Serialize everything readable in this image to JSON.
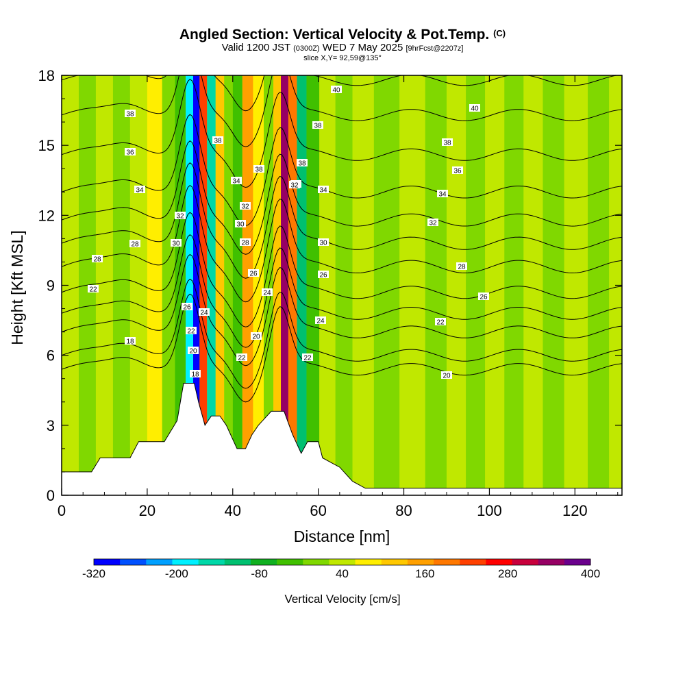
{
  "title": {
    "main": "Angled Section: Vertical Velocity & Pot.Temp.",
    "mark": "(C)",
    "valid_prefix": "Valid 1200 JST",
    "valid_z": "(0300Z)",
    "valid_date": "WED 7 May 2025",
    "forecast": "[9hrFcst@2207z]",
    "slice": "slice X,Y= 92,59@135°"
  },
  "chart_data": {
    "type": "heatmap",
    "xlabel": "Distance [nm]",
    "ylabel": "Height [Kft MSL]",
    "xlim": [
      0,
      131
    ],
    "ylim": [
      0,
      18
    ],
    "x_ticks": [
      0,
      20,
      40,
      60,
      80,
      100,
      120
    ],
    "y_ticks": [
      0,
      3,
      6,
      9,
      12,
      15,
      18
    ],
    "colorbar": {
      "title": "Vertical Velocity [cm/s]",
      "min": -320,
      "max": 400,
      "step": 40,
      "tick_values": [
        -320,
        -200,
        -80,
        40,
        160,
        280,
        400
      ],
      "tick_labels": [
        "-320",
        "-200",
        "-80",
        "40",
        "160",
        "280",
        "400"
      ],
      "colors": [
        "#0000ff",
        "#0050ff",
        "#00a0ff",
        "#00f0ff",
        "#00d8a8",
        "#00c070",
        "#10b020",
        "#40c000",
        "#80d800",
        "#c0e800",
        "#ffee00",
        "#ffc800",
        "#ffa000",
        "#ff7800",
        "#ff4000",
        "#ff0000",
        "#c8003c",
        "#960064",
        "#6a008c"
      ]
    },
    "background_velocity": 40,
    "columns": [
      {
        "x": 2,
        "v": 40
      },
      {
        "x": 6,
        "v": 0
      },
      {
        "x": 10,
        "v": 40
      },
      {
        "x": 14,
        "v": 0
      },
      {
        "x": 18,
        "v": 40
      },
      {
        "x": 22,
        "v": 80
      },
      {
        "x": 25,
        "v": 0
      },
      {
        "x": 28,
        "v": -40
      },
      {
        "x": 30,
        "v": -200
      },
      {
        "x": 31.5,
        "v": -320
      },
      {
        "x": 33,
        "v": 240
      },
      {
        "x": 35,
        "v": -160
      },
      {
        "x": 37,
        "v": 120
      },
      {
        "x": 39,
        "v": 0
      },
      {
        "x": 41,
        "v": -40
      },
      {
        "x": 43.5,
        "v": 160
      },
      {
        "x": 46,
        "v": 80
      },
      {
        "x": 48.5,
        "v": 0
      },
      {
        "x": 50.5,
        "v": 120
      },
      {
        "x": 52,
        "v": 360
      },
      {
        "x": 54,
        "v": 200
      },
      {
        "x": 56,
        "v": -120
      },
      {
        "x": 58.5,
        "v": -40
      },
      {
        "x": 62,
        "v": 40
      },
      {
        "x": 66,
        "v": 0
      },
      {
        "x": 70,
        "v": 40
      },
      {
        "x": 76,
        "v": 0
      },
      {
        "x": 82,
        "v": 40
      },
      {
        "x": 88,
        "v": 0
      },
      {
        "x": 92,
        "v": 40
      },
      {
        "x": 97,
        "v": 0
      },
      {
        "x": 101,
        "v": 40
      },
      {
        "x": 106,
        "v": 0
      },
      {
        "x": 110,
        "v": 40
      },
      {
        "x": 115,
        "v": 0
      },
      {
        "x": 120,
        "v": 40
      },
      {
        "x": 126,
        "v": 0
      },
      {
        "x": 130,
        "v": 40
      }
    ],
    "potential_temperature_contours": [
      {
        "value": 18,
        "y0": 5.4
      },
      {
        "value": 20,
        "y0": 6.0
      },
      {
        "value": 22,
        "y0": 7.0
      },
      {
        "value": 24,
        "y0": 7.8
      },
      {
        "value": 26,
        "y0": 8.7
      },
      {
        "value": 28,
        "y0": 9.8
      },
      {
        "value": 30,
        "y0": 10.8
      },
      {
        "value": 32,
        "y0": 11.8
      },
      {
        "value": 34,
        "y0": 13.0
      },
      {
        "value": 36,
        "y0": 14.6
      },
      {
        "value": 38,
        "y0": 16.3
      },
      {
        "value": 40,
        "y0": 17.8
      }
    ],
    "contour_label_texts": [
      "40",
      "40",
      "38",
      "38",
      "38",
      "38",
      "38",
      "38",
      "36",
      "36",
      "36",
      "34",
      "34",
      "34",
      "34",
      "32",
      "32",
      "32",
      "32",
      "30",
      "30",
      "30",
      "28",
      "28",
      "28",
      "28",
      "26",
      "26",
      "26",
      "26",
      "24",
      "24",
      "24",
      "22",
      "22",
      "22",
      "22",
      "22",
      "20",
      "20",
      "20",
      "18",
      "18"
    ],
    "terrain_profile": [
      [
        0,
        1.0
      ],
      [
        7,
        1.0
      ],
      [
        9,
        1.6
      ],
      [
        16,
        1.6
      ],
      [
        18,
        2.3
      ],
      [
        24,
        2.3
      ],
      [
        27,
        3.2
      ],
      [
        28.5,
        4.8
      ],
      [
        31,
        4.8
      ],
      [
        32,
        4.0
      ],
      [
        33.5,
        3.0
      ],
      [
        35,
        3.4
      ],
      [
        37,
        3.4
      ],
      [
        38.5,
        3.0
      ],
      [
        41,
        2.0
      ],
      [
        43,
        2.0
      ],
      [
        44.5,
        2.6
      ],
      [
        46,
        3.0
      ],
      [
        49,
        3.6
      ],
      [
        52,
        3.6
      ],
      [
        54,
        2.6
      ],
      [
        56,
        1.8
      ],
      [
        57.5,
        2.3
      ],
      [
        60,
        2.3
      ],
      [
        61,
        1.6
      ],
      [
        65,
        1.2
      ],
      [
        68,
        0.6
      ],
      [
        71,
        0.3
      ],
      [
        131,
        0.3
      ]
    ]
  }
}
